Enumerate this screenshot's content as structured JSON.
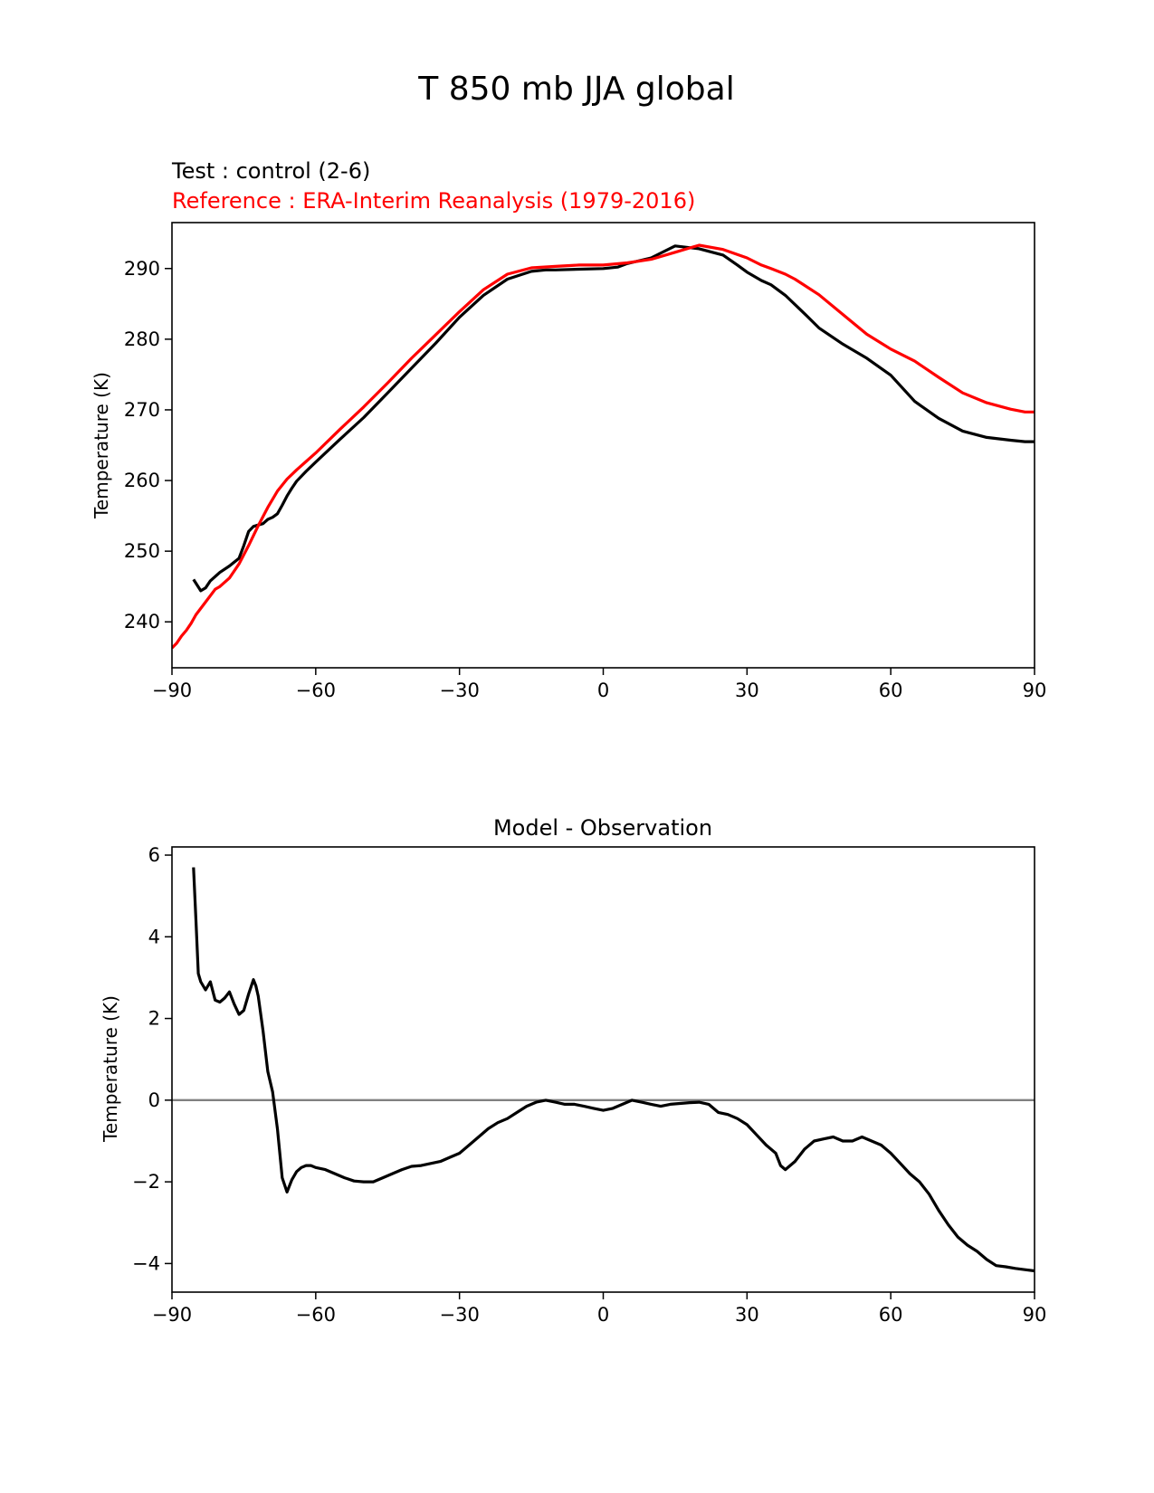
{
  "figure": {
    "title": "T 850 mb JJA global"
  },
  "chart_data": [
    {
      "type": "line",
      "test_label": "Test : control (2-6)",
      "reference_label": "Reference : ERA-Interim Reanalysis (1979-2016)",
      "xlabel": "",
      "ylabel": "Temperature (K)",
      "xlim": [
        -90,
        90
      ],
      "ylim": [
        233.5,
        296.5
      ],
      "xticks": [
        -90,
        -60,
        -30,
        0,
        30,
        60,
        90
      ],
      "xtick_labels": [
        "−90",
        "−60",
        "−30",
        "0",
        "30",
        "60",
        "90"
      ],
      "yticks": [
        240,
        250,
        260,
        270,
        280,
        290
      ],
      "ytick_labels": [
        "240",
        "250",
        "260",
        "270",
        "280",
        "290"
      ],
      "series": [
        {
          "name": "Test : control (2-6)",
          "color": "#000000",
          "x": [
            -85.5,
            -84,
            -83,
            -82,
            -80,
            -78,
            -76,
            -75,
            -74,
            -73,
            -72,
            -71,
            -70,
            -69,
            -68,
            -67,
            -66,
            -65,
            -64,
            -62,
            -60,
            -55,
            -50,
            -45,
            -40,
            -35,
            -30,
            -25,
            -20,
            -15,
            -12,
            -10,
            -5,
            0,
            3,
            5,
            10,
            15,
            20,
            25,
            28,
            30,
            33,
            35,
            38,
            42,
            45,
            50,
            55,
            60,
            65,
            70,
            75,
            80,
            85,
            88,
            90
          ],
          "values": [
            246.0,
            244.4,
            244.8,
            245.8,
            247.0,
            247.9,
            249.0,
            250.8,
            252.8,
            253.5,
            253.7,
            253.9,
            254.5,
            254.8,
            255.3,
            256.5,
            257.8,
            258.9,
            259.9,
            261.3,
            262.6,
            265.8,
            268.9,
            272.4,
            275.9,
            279.4,
            283.1,
            286.2,
            288.5,
            289.6,
            289.8,
            289.8,
            289.9,
            290.0,
            290.2,
            290.7,
            291.5,
            293.2,
            292.8,
            291.9,
            290.5,
            289.5,
            288.3,
            287.7,
            286.2,
            283.6,
            281.6,
            279.3,
            277.3,
            274.9,
            271.2,
            268.8,
            267.0,
            266.1,
            265.7,
            265.5,
            265.5
          ]
        },
        {
          "name": "Reference : ERA-Interim Reanalysis (1979-2016)",
          "color": "#ff0000",
          "x": [
            -90,
            -89,
            -88,
            -87,
            -86,
            -85,
            -83,
            -81,
            -80,
            -78,
            -76,
            -74,
            -72,
            -70,
            -68,
            -66,
            -64,
            -62,
            -60,
            -55,
            -50,
            -45,
            -40,
            -35,
            -30,
            -25,
            -20,
            -15,
            -10,
            -5,
            0,
            5,
            10,
            15,
            20,
            25,
            30,
            33,
            35,
            38,
            40,
            45,
            50,
            55,
            60,
            65,
            70,
            75,
            80,
            85,
            88,
            90
          ],
          "values": [
            236.3,
            237.0,
            238.0,
            238.8,
            239.8,
            241.0,
            242.8,
            244.6,
            245.0,
            246.2,
            248.2,
            250.8,
            253.6,
            256.2,
            258.5,
            260.2,
            261.5,
            262.7,
            263.9,
            267.2,
            270.4,
            273.8,
            277.3,
            280.6,
            283.9,
            287.0,
            289.2,
            290.1,
            290.3,
            290.5,
            290.5,
            290.8,
            291.3,
            292.3,
            293.3,
            292.7,
            291.5,
            290.5,
            290.0,
            289.2,
            288.5,
            286.3,
            283.5,
            280.7,
            278.6,
            276.9,
            274.6,
            272.4,
            271.0,
            270.1,
            269.7,
            269.7
          ]
        }
      ]
    },
    {
      "type": "line",
      "title": "Model - Observation",
      "xlabel": "",
      "ylabel": "Temperature (K)",
      "xlim": [
        -90,
        90
      ],
      "ylim": [
        -4.7,
        6.2
      ],
      "xticks": [
        -90,
        -60,
        -30,
        0,
        30,
        60,
        90
      ],
      "xtick_labels": [
        "−90",
        "−60",
        "−30",
        "0",
        "30",
        "60",
        "90"
      ],
      "yticks": [
        -4,
        -2,
        0,
        2,
        4,
        6
      ],
      "ytick_labels": [
        "−4",
        "−2",
        "0",
        "2",
        "4",
        "6"
      ],
      "zero_line": {
        "value": 0,
        "color": "#808080"
      },
      "series": [
        {
          "name": "Model - Observation",
          "color": "#000000",
          "x": [
            -85.5,
            -85,
            -84.5,
            -84,
            -83,
            -82,
            -81,
            -80,
            -79,
            -78,
            -77,
            -76,
            -75,
            -74,
            -73,
            -72.5,
            -72,
            -71,
            -70,
            -69,
            -68,
            -67,
            -66,
            -65,
            -64,
            -63,
            -62,
            -61,
            -60,
            -58,
            -56,
            -54,
            -52,
            -50,
            -48,
            -46,
            -44,
            -42,
            -40,
            -38,
            -36,
            -34,
            -32,
            -30,
            -28,
            -26,
            -24,
            -22,
            -20,
            -18,
            -16,
            -14,
            -12,
            -10,
            -8,
            -6,
            -4,
            -2,
            0,
            2,
            4,
            6,
            8,
            10,
            12,
            14,
            16,
            18,
            20,
            22,
            24,
            26,
            28,
            30,
            32,
            34,
            36,
            37,
            38,
            40,
            42,
            44,
            46,
            48,
            50,
            52,
            54,
            56,
            58,
            60,
            62,
            64,
            66,
            68,
            70,
            72,
            74,
            76,
            78,
            80,
            82,
            84,
            86,
            88,
            90
          ],
          "values": [
            5.7,
            4.4,
            3.1,
            2.9,
            2.7,
            2.9,
            2.45,
            2.4,
            2.5,
            2.65,
            2.35,
            2.1,
            2.2,
            2.6,
            2.95,
            2.8,
            2.55,
            1.7,
            0.7,
            0.2,
            -0.7,
            -1.9,
            -2.25,
            -1.95,
            -1.75,
            -1.65,
            -1.6,
            -1.6,
            -1.65,
            -1.7,
            -1.8,
            -1.9,
            -1.98,
            -2.0,
            -2.0,
            -1.9,
            -1.8,
            -1.7,
            -1.62,
            -1.6,
            -1.55,
            -1.5,
            -1.4,
            -1.3,
            -1.1,
            -0.9,
            -0.7,
            -0.55,
            -0.45,
            -0.3,
            -0.15,
            -0.05,
            0.0,
            -0.05,
            -0.1,
            -0.1,
            -0.15,
            -0.2,
            -0.25,
            -0.2,
            -0.1,
            0.0,
            -0.05,
            -0.1,
            -0.15,
            -0.1,
            -0.08,
            -0.06,
            -0.05,
            -0.1,
            -0.3,
            -0.35,
            -0.45,
            -0.6,
            -0.85,
            -1.1,
            -1.3,
            -1.6,
            -1.7,
            -1.5,
            -1.2,
            -1.0,
            -0.95,
            -0.9,
            -1.0,
            -1.0,
            -0.9,
            -1.0,
            -1.1,
            -1.3,
            -1.55,
            -1.8,
            -2.0,
            -2.3,
            -2.7,
            -3.05,
            -3.35,
            -3.55,
            -3.7,
            -3.9,
            -4.05,
            -4.08,
            -4.12,
            -4.15,
            -4.18
          ]
        }
      ]
    }
  ]
}
